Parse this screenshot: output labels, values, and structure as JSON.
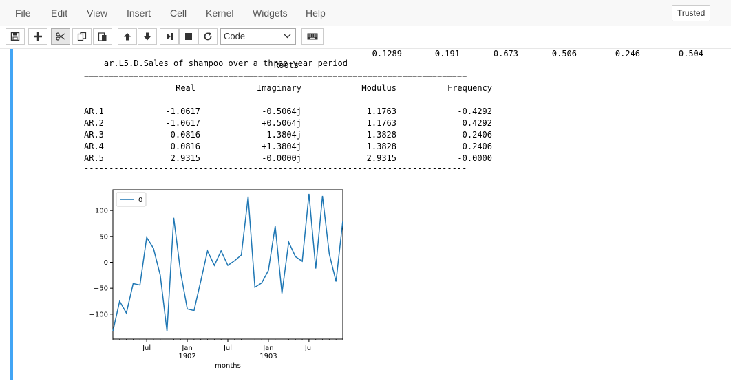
{
  "menubar": {
    "items": [
      "File",
      "Edit",
      "View",
      "Insert",
      "Cell",
      "Kernel",
      "Widgets",
      "Help"
    ],
    "trusted": "Trusted"
  },
  "toolbar": {
    "buttons": [
      "save-icon",
      "plus-icon",
      "scissors-icon",
      "copy-icon",
      "paste-icon",
      "arrow-up-icon",
      "arrow-down-icon",
      "step-forward-icon",
      "stop-icon",
      "restart-icon",
      "keyboard-icon"
    ],
    "cell_type": "Code"
  },
  "output": {
    "param_row": {
      "name": "ar.L5.D.Sales of shampoo over a three year period",
      "values": [
        "0.1289",
        "0.191",
        "0.673",
        "0.506",
        "-0.246",
        "0.504"
      ]
    },
    "roots_title": "Roots",
    "separator_double": "=============================================================================",
    "separator_single": "-----------------------------------------------------------------------------",
    "roots_headers": [
      "Real",
      "Imaginary",
      "Modulus",
      "Frequency"
    ],
    "roots_rows": [
      {
        "name": "AR.1",
        "real": "-1.0617",
        "imag": "-0.5064j",
        "modulus": "1.1763",
        "freq": "-0.4292"
      },
      {
        "name": "AR.2",
        "real": "-1.0617",
        "imag": "+0.5064j",
        "modulus": "1.1763",
        "freq": "0.4292"
      },
      {
        "name": "AR.3",
        "real": "0.0816",
        "imag": "-1.3804j",
        "modulus": "1.3828",
        "freq": "-0.2406"
      },
      {
        "name": "AR.4",
        "real": "0.0816",
        "imag": "+1.3804j",
        "modulus": "1.3828",
        "freq": "0.2406"
      },
      {
        "name": "AR.5",
        "real": "2.9315",
        "imag": "-0.0000j",
        "modulus": "2.9315",
        "freq": "-0.0000"
      }
    ]
  },
  "chart_data": {
    "type": "line",
    "xlabel": "months",
    "ylabel": "",
    "title": "",
    "legend": {
      "entries": [
        "0"
      ],
      "placement": "top-left"
    },
    "ylim": [
      -148,
      140
    ],
    "yticks": [
      100,
      50,
      0,
      -50,
      -100
    ],
    "xticks": [
      {
        "pos": 5,
        "label": "Jul",
        "sub": ""
      },
      {
        "pos": 11,
        "label": "Jan",
        "sub": "1902"
      },
      {
        "pos": 17,
        "label": "Jul",
        "sub": ""
      },
      {
        "pos": 23,
        "label": "Jan",
        "sub": "1903"
      },
      {
        "pos": 29,
        "label": "Jul",
        "sub": ""
      }
    ],
    "xlim": [
      0,
      34
    ],
    "series": [
      {
        "name": "0",
        "color": "#1f77b4",
        "values": [
          -133,
          -75,
          -98,
          -41,
          -44,
          48,
          27,
          -25,
          -133,
          86,
          -18,
          -90,
          -93,
          -36,
          22,
          -6,
          22,
          -6,
          3,
          14,
          127,
          -48,
          -40,
          -16,
          70,
          -60,
          39,
          11,
          2,
          132,
          -12,
          128,
          16,
          -37,
          80
        ]
      }
    ],
    "grid": false
  }
}
